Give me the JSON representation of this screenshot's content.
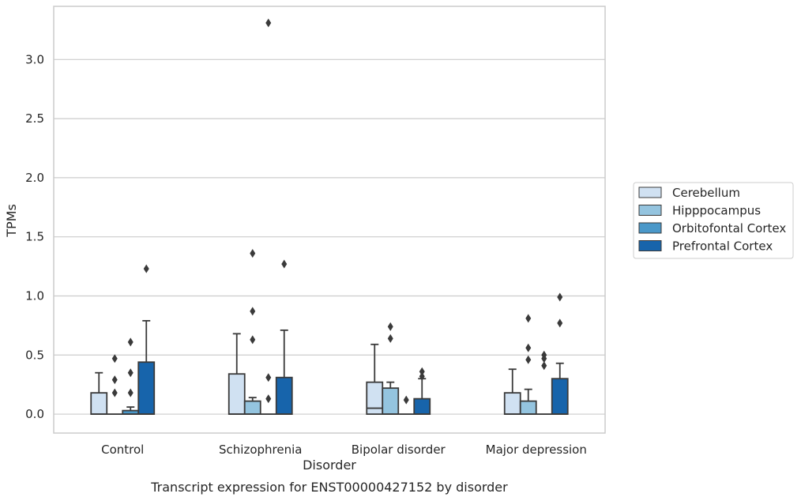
{
  "chart_data": {
    "type": "boxplot",
    "caption": "Transcript expression for ENST00000427152 by disorder",
    "xlabel": "Disorder",
    "ylabel": "TPMs",
    "categories": [
      "Control",
      "Schizophrenia",
      "Bipolar disorder",
      "Major depression"
    ],
    "ylim": [
      -0.16,
      3.45
    ],
    "yticks": [
      0.0,
      0.5,
      1.0,
      1.5,
      2.0,
      2.5,
      3.0
    ],
    "ytick_labels": [
      "0.0",
      "0.5",
      "1.0",
      "1.5",
      "2.0",
      "2.5",
      "3.0"
    ],
    "grid": true,
    "legend_position": "right",
    "series": [
      {
        "name": "Cerebellum",
        "color": "#d0e1f2",
        "boxes": [
          {
            "q1": 0.0,
            "median": 0.0,
            "q3": 0.18,
            "whisker_low": 0.0,
            "whisker_high": 0.35,
            "outliers": []
          },
          {
            "q1": 0.0,
            "median": 0.0,
            "q3": 0.34,
            "whisker_low": 0.0,
            "whisker_high": 0.68,
            "outliers": []
          },
          {
            "q1": 0.0,
            "median": 0.05,
            "q3": 0.27,
            "whisker_low": 0.0,
            "whisker_high": 0.59,
            "outliers": []
          },
          {
            "q1": 0.0,
            "median": 0.0,
            "q3": 0.18,
            "whisker_low": 0.0,
            "whisker_high": 0.38,
            "outliers": []
          }
        ]
      },
      {
        "name": "Hipppocampus",
        "color": "#94c4df",
        "boxes": [
          {
            "q1": 0.0,
            "median": 0.0,
            "q3": 0.0,
            "whisker_low": 0.0,
            "whisker_high": 0.0,
            "outliers": [
              0.18,
              0.29,
              0.47
            ]
          },
          {
            "q1": 0.0,
            "median": 0.0,
            "q3": 0.11,
            "whisker_low": 0.0,
            "whisker_high": 0.14,
            "outliers": [
              0.63,
              0.87,
              1.36
            ]
          },
          {
            "q1": 0.0,
            "median": 0.0,
            "q3": 0.22,
            "whisker_low": 0.0,
            "whisker_high": 0.27,
            "outliers": [
              0.64,
              0.74
            ]
          },
          {
            "q1": 0.0,
            "median": 0.0,
            "q3": 0.11,
            "whisker_low": 0.0,
            "whisker_high": 0.21,
            "outliers": [
              0.46,
              0.56,
              0.81
            ]
          }
        ]
      },
      {
        "name": "Orbitofontal Cortex",
        "color": "#4a98c9",
        "boxes": [
          {
            "q1": 0.0,
            "median": 0.0,
            "q3": 0.03,
            "whisker_low": 0.0,
            "whisker_high": 0.06,
            "outliers": [
              0.18,
              0.35,
              0.61
            ]
          },
          {
            "q1": 0.0,
            "median": 0.0,
            "q3": 0.0,
            "whisker_low": 0.0,
            "whisker_high": 0.0,
            "outliers": [
              0.13,
              0.31,
              3.31
            ]
          },
          {
            "q1": 0.0,
            "median": 0.0,
            "q3": 0.0,
            "whisker_low": 0.0,
            "whisker_high": 0.0,
            "outliers": [
              0.12
            ]
          },
          {
            "q1": 0.0,
            "median": 0.0,
            "q3": 0.0,
            "whisker_low": 0.0,
            "whisker_high": 0.0,
            "outliers": [
              0.41,
              0.47,
              0.5
            ]
          }
        ]
      },
      {
        "name": "Prefrontal Cortex",
        "color": "#1764ab",
        "boxes": [
          {
            "q1": 0.0,
            "median": 0.0,
            "q3": 0.44,
            "whisker_low": 0.0,
            "whisker_high": 0.79,
            "outliers": [
              1.23
            ]
          },
          {
            "q1": 0.0,
            "median": 0.0,
            "q3": 0.31,
            "whisker_low": 0.0,
            "whisker_high": 0.71,
            "outliers": [
              1.27
            ]
          },
          {
            "q1": 0.0,
            "median": 0.0,
            "q3": 0.13,
            "whisker_low": 0.0,
            "whisker_high": 0.3,
            "outliers": [
              0.32,
              0.36
            ]
          },
          {
            "q1": 0.0,
            "median": 0.0,
            "q3": 0.3,
            "whisker_low": 0.0,
            "whisker_high": 0.43,
            "outliers": [
              0.77,
              0.99
            ]
          }
        ]
      }
    ]
  }
}
